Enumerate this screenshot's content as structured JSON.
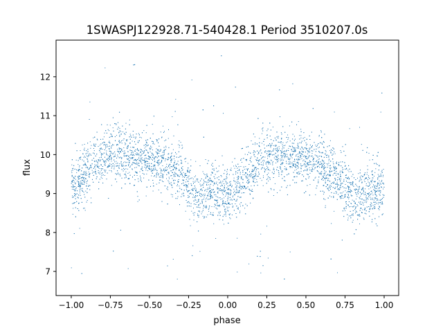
{
  "chart_data": {
    "type": "scatter",
    "title": "1SWASPJ122928.71-540428.1 Period 3510207.0s",
    "xlabel": "phase",
    "ylabel": "flux",
    "xlim": [
      -1.097,
      1.093
    ],
    "ylim": [
      6.38,
      12.94
    ],
    "xticks": [
      -1.0,
      -0.75,
      -0.5,
      -0.25,
      0.0,
      0.25,
      0.5,
      0.75,
      1.0
    ],
    "xtick_labels": [
      "−1.00",
      "−0.75",
      "−0.50",
      "−0.25",
      "0.00",
      "0.25",
      "0.50",
      "0.75",
      "1.00"
    ],
    "yticks": [
      7,
      8,
      9,
      10,
      11,
      12
    ],
    "ytick_labels": [
      "7",
      "8",
      "9",
      "10",
      "11",
      "12"
    ],
    "grid": false,
    "marker_color": "#1f77b4",
    "profile": {
      "phase": [
        -1.0,
        -0.9,
        -0.8,
        -0.7,
        -0.6,
        -0.5,
        -0.4,
        -0.3,
        -0.2,
        -0.1,
        0.0,
        0.1,
        0.2,
        0.3,
        0.4,
        0.5,
        0.6,
        0.7,
        0.8,
        0.9,
        1.0
      ],
      "mean_flux": [
        9.1,
        9.6,
        9.95,
        10.05,
        9.9,
        9.9,
        9.8,
        9.5,
        8.85,
        9.1,
        8.95,
        9.3,
        9.85,
        10.0,
        9.95,
        9.9,
        9.7,
        9.45,
        8.9,
        9.1,
        9.05
      ],
      "scatter_sigma": 0.35,
      "n_points": 6000,
      "outlier_fraction": 0.02,
      "outlier_range": [
        6.7,
        12.7
      ]
    }
  }
}
